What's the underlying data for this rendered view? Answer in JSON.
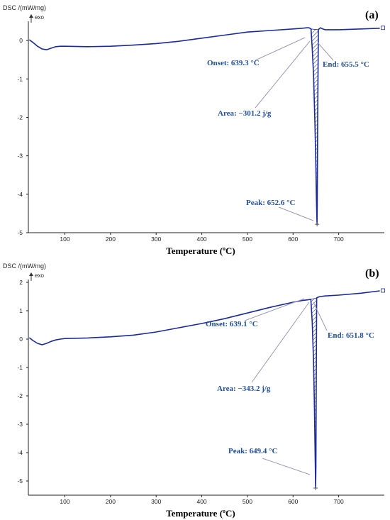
{
  "chart_data": [
    {
      "type": "line",
      "panel_label": "(a)",
      "ylabel": "DSC /(mW/mg)",
      "exo_label": "exo",
      "xlabel_main": "Temperature (",
      "xlabel_sup": "o",
      "xlabel_end": "C)",
      "xlim": [
        20,
        800
      ],
      "ylim": [
        -5,
        0.5
      ],
      "xticks": [
        100,
        200,
        300,
        400,
        500,
        600,
        700
      ],
      "yticks": [
        0,
        -1,
        -2,
        -3,
        -4,
        -5
      ],
      "series": [
        {
          "x": [
            22,
            30,
            40,
            50,
            60,
            70,
            80,
            90,
            100,
            150,
            200,
            250,
            300,
            350,
            400,
            450,
            500,
            550,
            600,
            620,
            630,
            635,
            639.3,
            642,
            645,
            648,
            650,
            651,
            652,
            652.6,
            653,
            654,
            655.5,
            657,
            660,
            665,
            670,
            700,
            750,
            790
          ],
          "y": [
            0.02,
            -0.05,
            -0.15,
            -0.22,
            -0.24,
            -0.2,
            -0.16,
            -0.15,
            -0.15,
            -0.16,
            -0.15,
            -0.12,
            -0.08,
            -0.02,
            0.06,
            0.14,
            0.22,
            0.26,
            0.3,
            0.32,
            0.33,
            0.33,
            0.3,
            -0.2,
            -0.9,
            -2.2,
            -3.3,
            -4.0,
            -4.5,
            -4.78,
            -4.3,
            -2.0,
            0.28,
            0.3,
            0.33,
            0.3,
            0.28,
            0.28,
            0.3,
            0.32
          ]
        }
      ],
      "annotations": [
        {
          "text": "Onset: 639.3 °C",
          "x": 639.3
        },
        {
          "text": "End: 655.5 °C",
          "x": 655.5
        },
        {
          "text": "Area: −301.2 j/g"
        },
        {
          "text": "Peak: 652.6 °C",
          "x": 652.6,
          "y": -4.78
        }
      ],
      "colors": {
        "line": "#1a2a9a",
        "annotation": "#1f4f9a",
        "hatch": "#1a2a9a"
      }
    },
    {
      "type": "line",
      "panel_label": "(b)",
      "ylabel": "DSC /(mW/mg)",
      "exo_label": "exo",
      "xlabel_main": "Temperature (",
      "xlabel_sup": "o",
      "xlabel_end": "C)",
      "xlim": [
        20,
        800
      ],
      "ylim": [
        -5.5,
        2.1
      ],
      "xticks": [
        100,
        200,
        300,
        400,
        500,
        600,
        700
      ],
      "yticks": [
        2,
        1,
        0,
        -1,
        -2,
        -3,
        -4,
        -5
      ],
      "series": [
        {
          "x": [
            22,
            30,
            40,
            50,
            60,
            70,
            80,
            90,
            100,
            150,
            200,
            250,
            300,
            350,
            400,
            450,
            500,
            550,
            600,
            620,
            630,
            639.1,
            642,
            645,
            647,
            648.5,
            649.4,
            650,
            651,
            651.8,
            655,
            660,
            670,
            700,
            750,
            790
          ],
          "y": [
            0.05,
            -0.05,
            -0.15,
            -0.2,
            -0.15,
            -0.08,
            -0.03,
            0.0,
            0.02,
            0.04,
            0.08,
            0.14,
            0.25,
            0.4,
            0.55,
            0.72,
            0.92,
            1.12,
            1.3,
            1.36,
            1.38,
            1.4,
            0.6,
            -0.8,
            -2.5,
            -4.2,
            -5.25,
            -4.5,
            -1.0,
            1.45,
            1.48,
            1.5,
            1.52,
            1.55,
            1.62,
            1.7
          ]
        }
      ],
      "annotations": [
        {
          "text": "Onset: 639.1 °C",
          "x": 639.1
        },
        {
          "text": "End: 651.8 °C",
          "x": 651.8
        },
        {
          "text": "Area: −343.2 j/g"
        },
        {
          "text": "Peak: 649.4 °C",
          "x": 649.4,
          "y": -5.25
        }
      ],
      "colors": {
        "line": "#1a2a9a",
        "annotation": "#1f4f9a",
        "hatch": "#1a2a9a"
      }
    }
  ]
}
